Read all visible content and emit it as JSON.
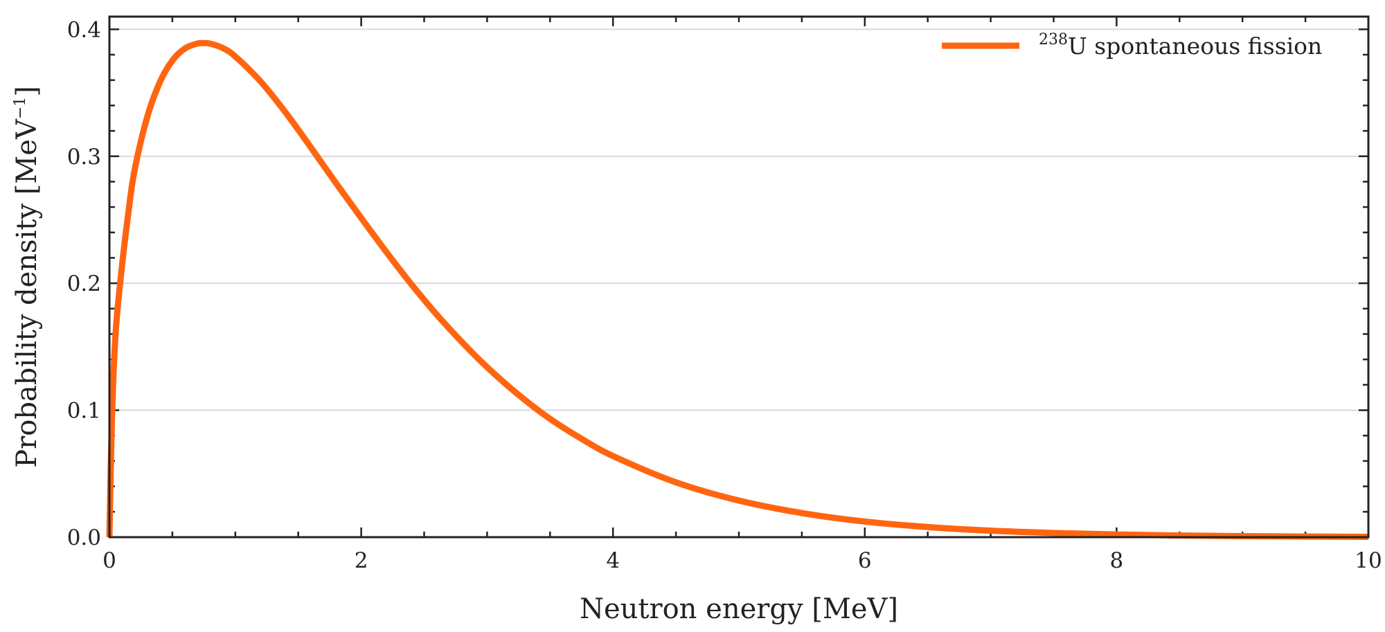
{
  "chart_data": {
    "type": "line",
    "title": "",
    "xlabel": "Neutron energy [MeV]",
    "ylabel": "Probability density [MeV",
    "ylabel_superscript": "−1",
    "ylabel_close": "]",
    "xlim": [
      0,
      10
    ],
    "ylim": [
      0,
      0.41
    ],
    "x_ticks": [
      0,
      2,
      4,
      6,
      8,
      10
    ],
    "x_tick_labels": [
      "0",
      "2",
      "4",
      "6",
      "8",
      "10"
    ],
    "y_ticks": [
      0.0,
      0.1,
      0.2,
      0.3,
      0.4
    ],
    "y_tick_labels": [
      "0.0",
      "0.1",
      "0.2",
      "0.3",
      "0.4"
    ],
    "grid": "horizontal",
    "legend_position": "top-right",
    "series": [
      {
        "name_superscript": "238",
        "name": "U spontaneous fission",
        "color": "#ff6510",
        "x": [
          0.0,
          0.02,
          0.05,
          0.1,
          0.15,
          0.2,
          0.3,
          0.4,
          0.5,
          0.6,
          0.7,
          0.75,
          0.8,
          0.9,
          1.0,
          1.2,
          1.4,
          1.6,
          1.8,
          2.0,
          2.2,
          2.4,
          2.6,
          2.8,
          3.0,
          3.25,
          3.5,
          3.75,
          4.0,
          4.5,
          5.0,
          5.5,
          6.0,
          6.5,
          7.0,
          7.5,
          8.0,
          8.5,
          9.0,
          9.5,
          10.0
        ],
        "y": [
          0.0,
          0.0934,
          0.1618,
          0.2136,
          0.2552,
          0.2891,
          0.3308,
          0.3582,
          0.3754,
          0.3849,
          0.3888,
          0.3891,
          0.3887,
          0.3853,
          0.3786,
          0.359,
          0.3344,
          0.307,
          0.2788,
          0.2514,
          0.2246,
          0.199,
          0.1753,
          0.1537,
          0.1339,
          0.1121,
          0.0932,
          0.0775,
          0.0639,
          0.0432,
          0.0288,
          0.019,
          0.0123,
          0.008,
          0.0051,
          0.0033,
          0.0021,
          0.0013,
          0.0008,
          0.0005,
          0.0003
        ]
      }
    ]
  }
}
